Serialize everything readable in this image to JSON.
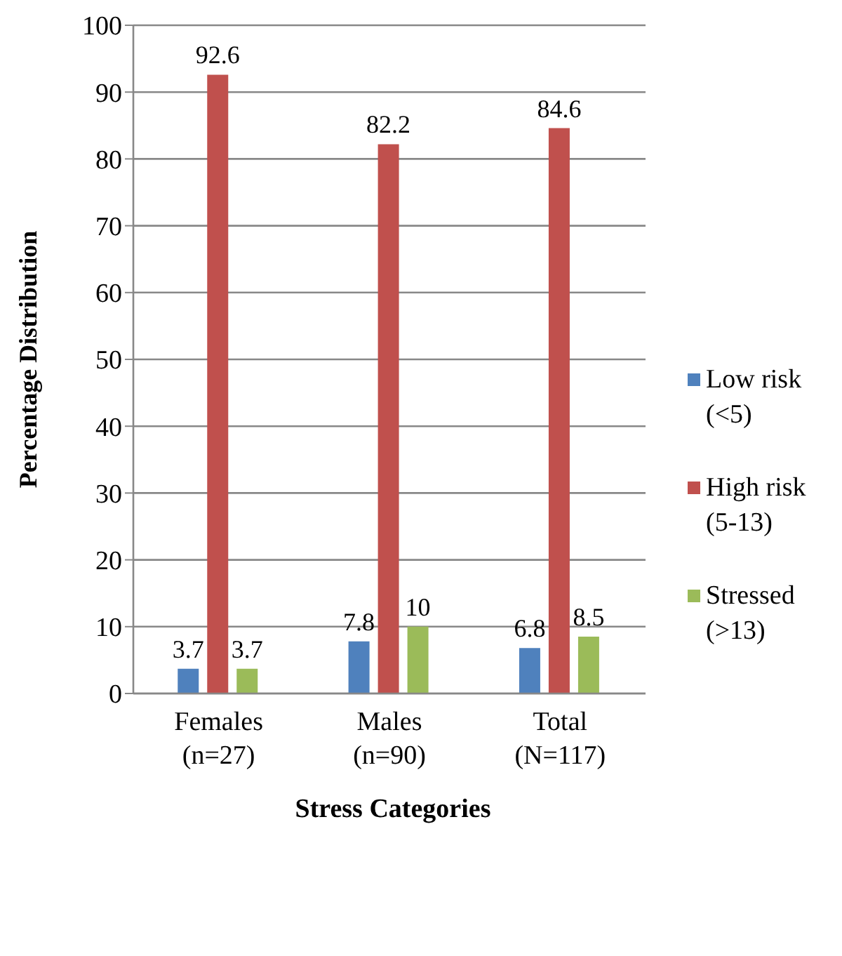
{
  "chart_data": {
    "type": "bar",
    "xlabel": "Stress Categories",
    "ylabel": "Percentage Distribution",
    "categories": [
      "Females (n=27)",
      "Males (n=90)",
      "Total (N=117)"
    ],
    "series": [
      {
        "name": "Low risk (<5)",
        "color": "#4f81bd",
        "values": [
          3.7,
          7.8,
          6.8
        ]
      },
      {
        "name": "High risk (5-13)",
        "color": "#c0504d",
        "values": [
          92.6,
          82.2,
          84.6
        ]
      },
      {
        "name": "Stressed (>13)",
        "color": "#9bbb59",
        "values": [
          3.7,
          10,
          8.5
        ]
      }
    ],
    "ylim": [
      0,
      100
    ],
    "yticks": [
      0,
      10,
      20,
      30,
      40,
      50,
      60,
      70,
      80,
      90,
      100
    ],
    "grid": "y",
    "legend": "right",
    "data_labels": true
  }
}
